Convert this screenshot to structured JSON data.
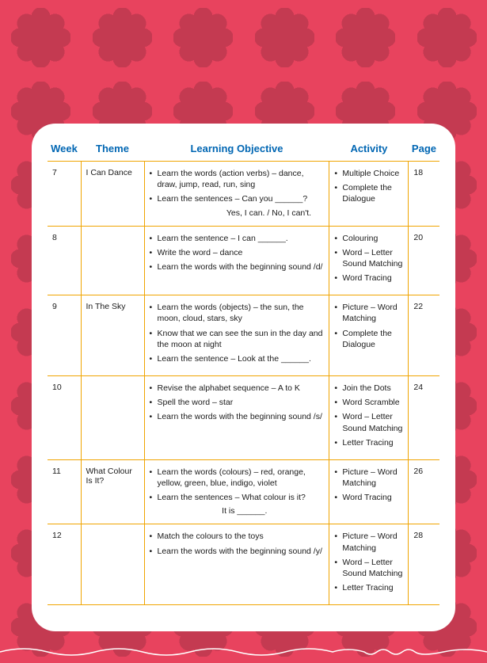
{
  "colors": {
    "page_bg": "#e8435e",
    "flower": "#c43a51",
    "card_bg": "#ffffff",
    "header_text": "#0066b3",
    "border": "#f0a400",
    "body_text": "#1a1a1a",
    "wave": "#ffffff"
  },
  "headers": {
    "week": "Week",
    "theme": "Theme",
    "objective": "Learning Objective",
    "activity": "Activity",
    "page": "Page"
  },
  "rows": [
    {
      "week": "7",
      "theme": "I Can Dance",
      "objectives": [
        "Learn the words (action verbs) – dance, draw, jump, read, run, sing",
        "Learn the sentences – Can you ______?"
      ],
      "objective_sub": "                              Yes, I can. / No, I can't.",
      "activities": [
        "Multiple Choice",
        "Complete the Dialogue"
      ],
      "page": "18"
    },
    {
      "week": "8",
      "theme": "",
      "objectives": [
        "Learn the sentence – I can ______.",
        "Write the word – dance",
        "Learn the words with the beginning sound /d/"
      ],
      "objective_sub": "",
      "activities": [
        "Colouring",
        "Word – Letter Sound Matching",
        "Word Tracing"
      ],
      "page": "20"
    },
    {
      "week": "9",
      "theme": "In The Sky",
      "objectives": [
        "Learn the words (objects) – the sun, the moon, cloud, stars, sky",
        "Know that we can see the sun in the day and the moon at night",
        "Learn the sentence – Look at the ______."
      ],
      "objective_sub": "",
      "activities": [
        "Picture – Word Matching",
        "Complete the Dialogue"
      ],
      "page": "22"
    },
    {
      "week": "10",
      "theme": "",
      "objectives": [
        "Revise the alphabet sequence – A to K",
        "Spell the word – star",
        "Learn the words with the beginning sound /s/"
      ],
      "objective_sub": "",
      "activities": [
        "Join the Dots",
        "Word Scramble",
        "Word – Letter Sound Matching",
        "Letter Tracing"
      ],
      "page": "24"
    },
    {
      "week": "11",
      "theme": "What Colour Is It?",
      "objectives": [
        "Learn the words (colours) – red, orange, yellow, green, blue, indigo, violet",
        "Learn the sentences – What colour is it?"
      ],
      "objective_sub": "                            It is ______.",
      "activities": [
        "Picture – Word Matching",
        "Word Tracing"
      ],
      "page": "26"
    },
    {
      "week": "12",
      "theme": "",
      "objectives": [
        "Match the colours to the toys",
        "Learn the words with the beginning sound /y/"
      ],
      "objective_sub": "",
      "activities": [
        "Picture – Word Matching",
        "Word – Letter Sound Matching",
        "Letter Tracing"
      ],
      "page": "28"
    }
  ]
}
